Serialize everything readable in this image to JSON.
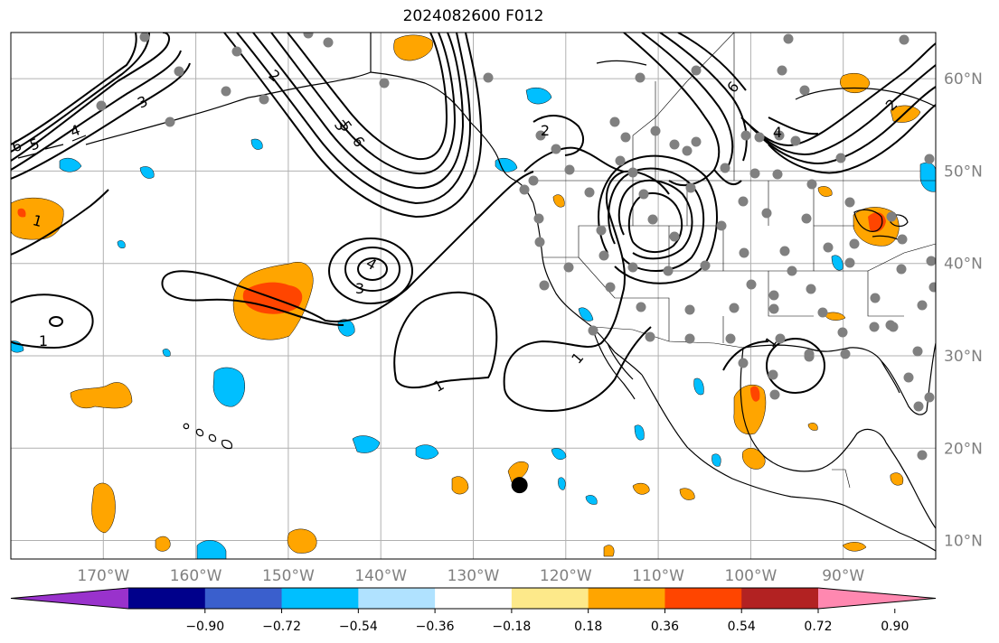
{
  "title": "2024082600 F012",
  "colors": {
    "neg_strong": "#00bfff",
    "pos_weak": "#ffa500",
    "pos_mid": "#ff4500",
    "pos_strong": "#b22222",
    "station": "#808080",
    "marker": "#000000",
    "grid": "#b0b0b0",
    "tick_label": "#808080"
  },
  "map": {
    "projection": "PlateCarree",
    "lon_range": [
      -180,
      -80
    ],
    "lat_range": [
      8,
      65
    ],
    "lon_ticks": [
      "170°W",
      "160°W",
      "150°W",
      "140°W",
      "130°W",
      "120°W",
      "110°W",
      "100°W",
      "90°W"
    ],
    "lat_ticks": [
      "60°N",
      "50°N",
      "40°N",
      "30°N",
      "20°N",
      "10°N"
    ],
    "contour_labels": [
      "1",
      "1",
      "1",
      "1",
      "1",
      "2",
      "2",
      "2",
      "3",
      "3",
      "3",
      "4",
      "4",
      "4",
      "5",
      "5",
      "6",
      "6",
      "6"
    ],
    "marker": {
      "lon": -125,
      "lat": 16
    }
  },
  "colorbar": {
    "colors": [
      "#9932cc",
      "#00008b",
      "#3a5fcd",
      "#00bfff",
      "#b0e2ff",
      "#ffffff",
      "#fde98a",
      "#ffa500",
      "#ff4500",
      "#b22222",
      "#ff88b0"
    ],
    "ticks": [
      "−0.90",
      "−0.72",
      "−0.54",
      "−0.36",
      "−0.18",
      "0.18",
      "0.36",
      "0.54",
      "0.72",
      "0.90"
    ]
  }
}
